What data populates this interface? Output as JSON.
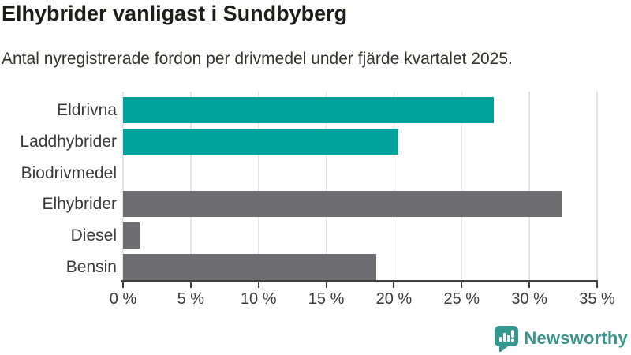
{
  "header": {
    "title": "Elhybrider vanligast i Sundbyberg",
    "subtitle": "Antal nyregistrerade fordon per drivmedel under fjärde kvartalet 2025."
  },
  "chart_data": {
    "type": "bar",
    "orientation": "horizontal",
    "title": "Elhybrider vanligast i Sundbyberg",
    "subtitle": "Antal nyregistrerade fordon per drivmedel under fjärde kvartalet 2025.",
    "categories": [
      "Eldrivna",
      "Laddhybrider",
      "Biodrivmedel",
      "Elhybrider",
      "Diesel",
      "Bensin"
    ],
    "values": [
      27.4,
      20.3,
      0,
      32.4,
      1.2,
      18.7
    ],
    "unit": "%",
    "bar_colors": [
      "#00a39b",
      "#00a39b",
      "#6e6e72",
      "#6e6e72",
      "#6e6e72",
      "#6e6e72"
    ],
    "xlim": [
      0,
      35
    ],
    "x_ticks": [
      0,
      5,
      10,
      15,
      20,
      25,
      30,
      35
    ],
    "x_tick_labels": [
      "0 %",
      "5 %",
      "10 %",
      "15 %",
      "20 %",
      "25 %",
      "30 %",
      "35 %"
    ],
    "grid": "vertical-on",
    "legend": "none"
  },
  "colors": {
    "teal": "#00a39b",
    "gray": "#6e6e72",
    "axis": "#3f3f3f",
    "gridline": "#e4e4e4",
    "label_text": "#3a3a3a",
    "title_text": "#1d1e1a",
    "logo_icon": "#35988f",
    "logo_text": "#3a938c"
  },
  "footer": {
    "brand": "Newsworthy"
  }
}
